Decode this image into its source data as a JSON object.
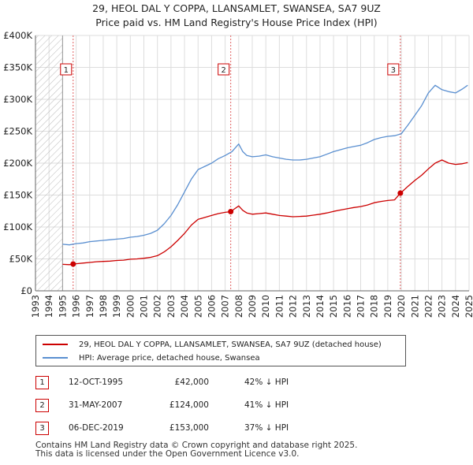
{
  "title_line1": "29, HEOL DAL Y COPPA, LLANSAMLET, SWANSEA, SA7 9UZ",
  "title_line2": "Price paid vs. HM Land Registry's House Price Index (HPI)",
  "colors": {
    "property": "#cc0000",
    "hpi": "#5a8fd0",
    "marker_box": "#cc0000",
    "vline": "#e06060",
    "hatch": "#bbbbbb",
    "grid": "#dddddd"
  },
  "legend": {
    "property": "29, HEOL DAL Y COPPA, LLANSAMLET, SWANSEA, SA7 9UZ (detached house)",
    "hpi": "HPI: Average price, detached house, Swansea"
  },
  "transactions": [
    {
      "num": "1",
      "date": "12-OCT-1995",
      "price": "£42,000",
      "hpi_diff": "42% ↓ HPI",
      "year": 1995.78,
      "value": 42000
    },
    {
      "num": "2",
      "date": "31-MAY-2007",
      "price": "£124,000",
      "hpi_diff": "41% ↓ HPI",
      "year": 2007.41,
      "value": 124000
    },
    {
      "num": "3",
      "date": "06-DEC-2019",
      "price": "£153,000",
      "hpi_diff": "37% ↓ HPI",
      "year": 2019.93,
      "value": 153000
    }
  ],
  "footer_line1": "Contains HM Land Registry data © Crown copyright and database right 2025.",
  "footer_line2": "This data is licensed under the Open Government Licence v3.0.",
  "chart_data": {
    "type": "line",
    "title": "29, HEOL DAL Y COPPA, LLANSAMLET, SWANSEA, SA7 9UZ",
    "subtitle": "Price paid vs. HM Land Registry's House Price Index (HPI)",
    "xlabel": "",
    "ylabel": "",
    "xlim": [
      1993,
      2025
    ],
    "ylim": [
      0,
      400000
    ],
    "x_ticks": [
      "1993",
      "1994",
      "1995",
      "1996",
      "1997",
      "1998",
      "1999",
      "2000",
      "2001",
      "2002",
      "2003",
      "2004",
      "2005",
      "2006",
      "2007",
      "2008",
      "2009",
      "2010",
      "2011",
      "2012",
      "2013",
      "2014",
      "2015",
      "2016",
      "2017",
      "2018",
      "2019",
      "2020",
      "2021",
      "2022",
      "2023",
      "2024",
      "2025"
    ],
    "y_ticks": [
      {
        "label": "£0",
        "value": 0
      },
      {
        "label": "£50K",
        "value": 50000
      },
      {
        "label": "£100K",
        "value": 100000
      },
      {
        "label": "£150K",
        "value": 150000
      },
      {
        "label": "£200K",
        "value": 200000
      },
      {
        "label": "£250K",
        "value": 250000
      },
      {
        "label": "£300K",
        "value": 300000
      },
      {
        "label": "£350K",
        "value": 350000
      },
      {
        "label": "£400K",
        "value": 400000
      }
    ],
    "grid": true,
    "hatched_range": [
      1993,
      1995.0
    ],
    "series": [
      {
        "name": "HPI: Average price, detached house, Swansea",
        "x": [
          1995.0,
          1995.5,
          1996.0,
          1996.5,
          1997.0,
          1997.5,
          1998.0,
          1998.5,
          1999.0,
          1999.5,
          2000.0,
          2000.5,
          2001.0,
          2001.5,
          2002.0,
          2002.5,
          2003.0,
          2003.5,
          2004.0,
          2004.5,
          2005.0,
          2005.5,
          2006.0,
          2006.5,
          2007.0,
          2007.5,
          2008.0,
          2008.3,
          2008.6,
          2009.0,
          2009.5,
          2010.0,
          2010.5,
          2011.0,
          2011.5,
          2012.0,
          2012.5,
          2013.0,
          2013.5,
          2014.0,
          2014.5,
          2015.0,
          2015.5,
          2016.0,
          2016.5,
          2017.0,
          2017.5,
          2018.0,
          2018.5,
          2019.0,
          2019.5,
          2020.0,
          2020.5,
          2021.0,
          2021.5,
          2022.0,
          2022.5,
          2023.0,
          2023.5,
          2024.0,
          2024.5,
          2024.9
        ],
        "values": [
          73000,
          72000,
          74000,
          75000,
          77000,
          78000,
          79000,
          80000,
          81000,
          82000,
          84000,
          85000,
          87000,
          90000,
          95000,
          105000,
          118000,
          135000,
          155000,
          175000,
          190000,
          195000,
          200000,
          207000,
          212000,
          218000,
          230000,
          218000,
          212000,
          210000,
          211000,
          213000,
          210000,
          208000,
          206000,
          205000,
          205000,
          206000,
          208000,
          210000,
          214000,
          218000,
          221000,
          224000,
          226000,
          228000,
          232000,
          237000,
          240000,
          242000,
          243000,
          246000,
          260000,
          275000,
          290000,
          310000,
          322000,
          315000,
          312000,
          310000,
          316000,
          322000
        ]
      },
      {
        "name": "29, HEOL DAL Y COPPA, LLANSAMLET, SWANSEA, SA7 9UZ (detached house)",
        "x": [
          1995.0,
          1995.5,
          1995.78,
          1996.0,
          1996.5,
          1997.0,
          1997.5,
          1998.0,
          1998.5,
          1999.0,
          1999.5,
          2000.0,
          2000.5,
          2001.0,
          2001.5,
          2002.0,
          2002.5,
          2003.0,
          2003.5,
          2004.0,
          2004.5,
          2005.0,
          2005.5,
          2006.0,
          2006.5,
          2007.0,
          2007.41,
          2007.6,
          2008.0,
          2008.3,
          2008.6,
          2009.0,
          2009.5,
          2010.0,
          2010.5,
          2011.0,
          2011.5,
          2012.0,
          2012.5,
          2013.0,
          2013.5,
          2014.0,
          2014.5,
          2015.0,
          2015.5,
          2016.0,
          2016.5,
          2017.0,
          2017.5,
          2018.0,
          2018.5,
          2019.0,
          2019.5,
          2019.93,
          2020.2,
          2020.5,
          2021.0,
          2021.5,
          2022.0,
          2022.5,
          2023.0,
          2023.5,
          2024.0,
          2024.5,
          2024.9
        ],
        "values": [
          41500,
          41000,
          42000,
          42500,
          43500,
          44500,
          45500,
          46000,
          46500,
          47500,
          48000,
          49500,
          50000,
          51000,
          52500,
          55000,
          61000,
          69000,
          79000,
          90000,
          103000,
          112000,
          115000,
          118000,
          121000,
          123000,
          124000,
          127000,
          133000,
          126000,
          122000,
          120000,
          121000,
          122000,
          120000,
          118000,
          117000,
          116000,
          116500,
          117000,
          118500,
          120000,
          122000,
          124500,
          126500,
          128500,
          130500,
          132000,
          134500,
          138000,
          140000,
          141500,
          142500,
          153000,
          158000,
          164000,
          173000,
          181000,
          191000,
          200000,
          205000,
          200000,
          198000,
          199000,
          201000
        ]
      }
    ],
    "markers": [
      {
        "label": "1",
        "x": 1995.78,
        "y": 42000
      },
      {
        "label": "2",
        "x": 2007.41,
        "y": 124000
      },
      {
        "label": "3",
        "x": 2019.93,
        "y": 153000
      }
    ]
  }
}
